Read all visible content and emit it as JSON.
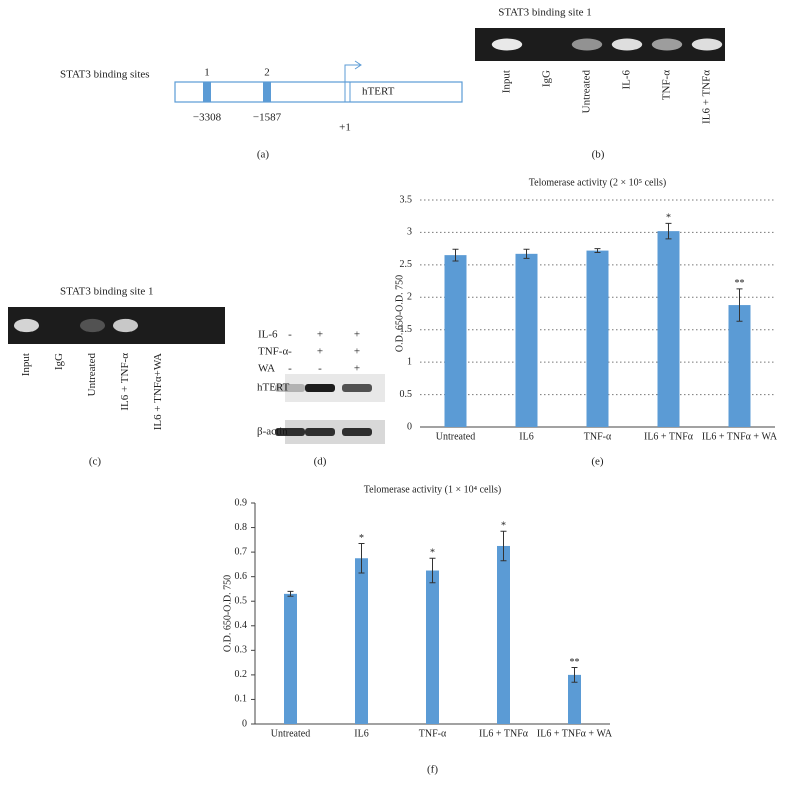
{
  "panel_a": {
    "label": "(a)",
    "title": "STAT3 binding sites",
    "sites": [
      {
        "number": "1",
        "position": "−3308"
      },
      {
        "number": "2",
        "position": "−1587"
      }
    ],
    "gene": "hTERT",
    "tss": "+1"
  },
  "panel_b": {
    "label": "(b)",
    "title": "STAT3 binding site 1",
    "lanes": [
      "Input",
      "IgG",
      "Untreated",
      "IL-6",
      "TNF-α",
      "IL6 + TNFα"
    ]
  },
  "panel_c": {
    "label": "(c)",
    "title": "STAT3 binding site 1",
    "lanes": [
      "Input",
      "IgG",
      "Untreated",
      "IL6 + TNF-α",
      "IL6 + TNFα+WA"
    ]
  },
  "panel_d": {
    "label": "(d)",
    "treatments": [
      {
        "name": "IL-6",
        "signs": [
          "-",
          "+",
          "+"
        ]
      },
      {
        "name": "TNF-α",
        "signs": [
          "-",
          "+",
          "+"
        ]
      },
      {
        "name": "WA",
        "signs": [
          "-",
          "-",
          "+"
        ]
      }
    ],
    "bands": [
      "hTERT",
      "β-actin"
    ]
  },
  "chart_data": [
    {
      "type": "bar",
      "label": "(e)",
      "title": "Telomerase activity (2 × 10⁵ cells)",
      "y_label": "O.D. 650-O.D. 750",
      "categories": [
        "Untreated",
        "IL6",
        "TNF-α",
        "IL6 + TNFα",
        "IL6 + TNFα + WA"
      ],
      "values": [
        2.65,
        2.67,
        2.72,
        3.02,
        1.88
      ],
      "errors": [
        0.09,
        0.07,
        0.03,
        0.12,
        0.25
      ],
      "significance": [
        null,
        null,
        null,
        "*",
        "**"
      ],
      "color": "#5b9bd5",
      "ylim": [
        0,
        3.5
      ],
      "yticks": [
        0,
        0.5,
        1,
        1.5,
        2,
        2.5,
        3,
        3.5
      ],
      "grid": true
    },
    {
      "type": "bar",
      "label": "(f)",
      "title": "Telomerase activity (1 × 10⁴ cells)",
      "y_label": "O.D. 650-O.D. 750",
      "categories": [
        "Untreated",
        "IL6",
        "TNF-α",
        "IL6 + TNFα",
        "IL6 + TNFα + WA"
      ],
      "values": [
        0.53,
        0.675,
        0.625,
        0.725,
        0.2
      ],
      "errors": [
        0.01,
        0.06,
        0.05,
        0.06,
        0.03
      ],
      "significance": [
        null,
        "*",
        "*",
        "*",
        "**"
      ],
      "color": "#5b9bd5",
      "ylim": [
        0,
        0.9
      ],
      "yticks": [
        0,
        0.1,
        0.2,
        0.3,
        0.4,
        0.5,
        0.6,
        0.7,
        0.8,
        0.9
      ],
      "grid": false
    }
  ]
}
